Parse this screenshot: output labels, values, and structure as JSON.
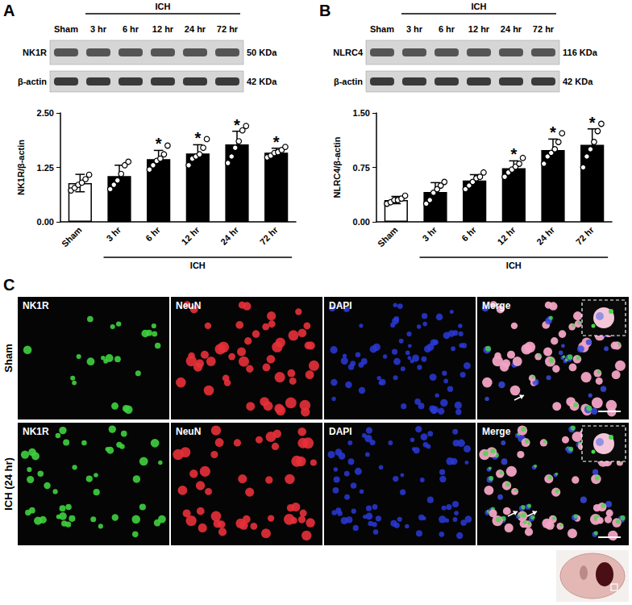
{
  "chart_data": [
    {
      "type": "bar",
      "y_label": "NK1R/β-actin",
      "group_label": "ICH",
      "categories": [
        "Sham",
        "3 hr",
        "6 hr",
        "12 hr",
        "24 hr",
        "72 hr"
      ],
      "values": [
        0.89,
        1.05,
        1.44,
        1.57,
        1.78,
        1.59
      ],
      "errors": [
        0.2,
        0.25,
        0.2,
        0.2,
        0.3,
        0.1
      ],
      "points": [
        [
          0.72,
          0.78,
          0.85,
          0.9,
          0.98,
          1.08
        ],
        [
          0.75,
          0.85,
          0.95,
          1.1,
          1.3,
          1.38
        ],
        [
          1.2,
          1.3,
          1.4,
          1.45,
          1.55,
          1.75
        ],
        [
          1.3,
          1.45,
          1.5,
          1.55,
          1.7,
          1.9
        ],
        [
          1.35,
          1.5,
          1.7,
          1.85,
          2.1,
          2.2
        ],
        [
          1.48,
          1.52,
          1.58,
          1.6,
          1.65,
          1.72
        ]
      ],
      "colors": [
        "#ffffff",
        "#000000",
        "#000000",
        "#000000",
        "#000000",
        "#000000"
      ],
      "ylim": [
        0,
        2.5
      ],
      "yticks": [
        {
          "value": 0,
          "label": "0.00"
        },
        {
          "value": 1.25,
          "label": "1.25"
        },
        {
          "value": 2.5,
          "label": "2.50"
        }
      ],
      "grid": false,
      "annotations": [
        {
          "category": "6 hr",
          "text": "*"
        },
        {
          "category": "12 hr",
          "text": "*"
        },
        {
          "category": "24 hr",
          "text": "*"
        },
        {
          "category": "72 hr",
          "text": "*"
        }
      ]
    },
    {
      "type": "bar",
      "y_label": "NLRC4/β-actin",
      "group_label": "ICH",
      "categories": [
        "Sham",
        "3 hr",
        "6 hr",
        "12 hr",
        "24 hr",
        "72 hr"
      ],
      "values": [
        0.3,
        0.41,
        0.57,
        0.74,
        0.99,
        1.06
      ],
      "errors": [
        0.05,
        0.13,
        0.08,
        0.1,
        0.15,
        0.22
      ],
      "points": [
        [
          0.25,
          0.27,
          0.3,
          0.3,
          0.32,
          0.36
        ],
        [
          0.25,
          0.3,
          0.4,
          0.45,
          0.5,
          0.55
        ],
        [
          0.45,
          0.5,
          0.55,
          0.6,
          0.62,
          0.68
        ],
        [
          0.62,
          0.68,
          0.72,
          0.76,
          0.8,
          0.88
        ],
        [
          0.8,
          0.9,
          0.95,
          1.0,
          1.1,
          1.22
        ],
        [
          0.75,
          0.9,
          1.0,
          1.1,
          1.25,
          1.35
        ]
      ],
      "colors": [
        "#ffffff",
        "#000000",
        "#000000",
        "#000000",
        "#000000",
        "#000000"
      ],
      "ylim": [
        0,
        1.5
      ],
      "yticks": [
        {
          "value": 0,
          "label": "0.00"
        },
        {
          "value": 0.75,
          "label": "0.75"
        },
        {
          "value": 1.5,
          "label": "1.50"
        }
      ],
      "grid": false,
      "annotations": [
        {
          "category": "12 hr",
          "text": "*"
        },
        {
          "category": "24 hr",
          "text": "*"
        },
        {
          "category": "72 hr",
          "text": "*"
        }
      ]
    }
  ],
  "figure": {
    "panel_labels": [
      "A",
      "B",
      "C"
    ],
    "blots": [
      {
        "group_label": "ICH",
        "lanes": [
          "Sham",
          "3 hr",
          "6 hr",
          "12 hr",
          "24 hr",
          "72 hr"
        ],
        "rows": [
          {
            "protein": "NK1R",
            "size": "50 KDa"
          },
          {
            "protein": "β-actin",
            "size": "42 KDa"
          }
        ]
      },
      {
        "group_label": "ICH",
        "lanes": [
          "Sham",
          "3 hr",
          "6 hr",
          "12 hr",
          "24 hr",
          "72 hr"
        ],
        "rows": [
          {
            "protein": "NLRC4",
            "size": "116 KDa"
          },
          {
            "protein": "β-actin",
            "size": "42 KDa"
          }
        ]
      }
    ],
    "micrographs": {
      "columns": [
        "NK1R",
        "NeuN",
        "DAPI",
        "Merge"
      ],
      "rows": [
        "Sham",
        "ICH (24 hr)"
      ]
    }
  }
}
